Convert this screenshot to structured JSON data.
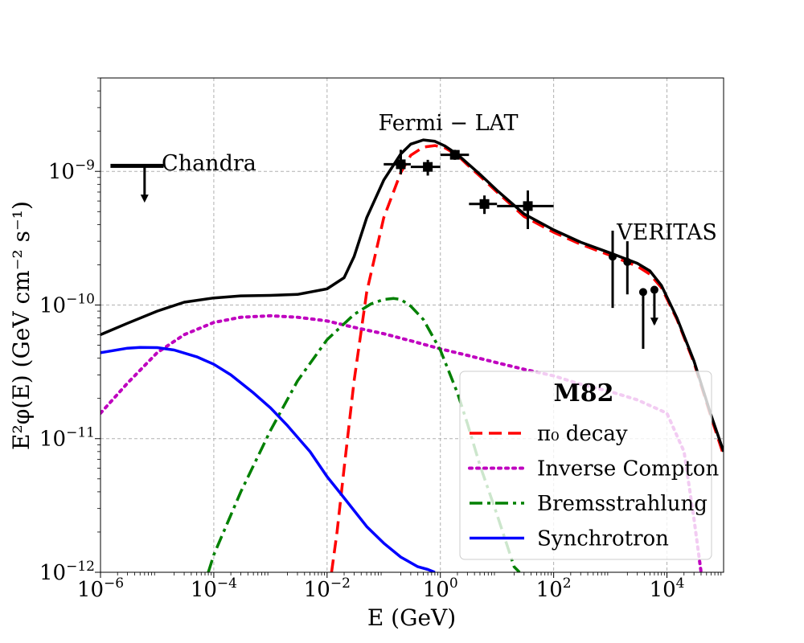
{
  "chart_data": {
    "type": "line",
    "title": "",
    "xlabel": "E (GeV)",
    "ylabel": "E²φ(E) (GeV cm⁻² s⁻¹)",
    "xscale": "log",
    "yscale": "log",
    "xlim": [
      1e-06,
      100000.0
    ],
    "ylim": [
      1e-12,
      5e-09
    ],
    "grid": true,
    "x_ticks": [
      {
        "value": 1e-06,
        "base": "10",
        "exp": "−6"
      },
      {
        "value": 0.0001,
        "base": "10",
        "exp": "−4"
      },
      {
        "value": 0.01,
        "base": "10",
        "exp": "−2"
      },
      {
        "value": 1,
        "base": "10",
        "exp": "0"
      },
      {
        "value": 100.0,
        "base": "10",
        "exp": "2"
      },
      {
        "value": 10000.0,
        "base": "10",
        "exp": "4"
      }
    ],
    "y_ticks": [
      {
        "value": 1e-12,
        "base": "10",
        "exp": "−12"
      },
      {
        "value": 1e-11,
        "base": "10",
        "exp": "−11"
      },
      {
        "value": 1e-10,
        "base": "10",
        "exp": "−10"
      },
      {
        "value": 1e-09,
        "base": "10",
        "exp": "−9"
      }
    ],
    "series": [
      {
        "name": "Total",
        "color": "#000000",
        "style": "solid",
        "x": [
          1e-06,
          3e-06,
          1e-05,
          3e-05,
          0.0001,
          0.0003,
          0.001,
          0.003,
          0.01,
          0.02,
          0.03,
          0.05,
          0.1,
          0.2,
          0.3,
          0.5,
          0.8,
          1.2,
          2,
          3,
          5,
          10,
          30,
          100,
          300,
          1000,
          3000,
          5000,
          8000,
          15000.0,
          30000.0,
          60000.0,
          100000.0
        ],
        "y": [
          6e-11,
          7.3e-11,
          9e-11,
          1.05e-10,
          1.13e-10,
          1.17e-10,
          1.18e-10,
          1.2e-10,
          1.32e-10,
          1.6e-10,
          2.3e-10,
          4.5e-10,
          8.6e-10,
          1.35e-09,
          1.6e-09,
          1.72e-09,
          1.68e-09,
          1.55e-09,
          1.34e-09,
          1.15e-09,
          9.5e-10,
          7.2e-10,
          4.8e-10,
          3.65e-10,
          2.95e-10,
          2.45e-10,
          2.05e-10,
          1.8e-10,
          1.4e-10,
          8e-11,
          3.8e-11,
          1.5e-11,
          8e-12
        ]
      },
      {
        "name": "π₀ decay",
        "color": "#ff0000",
        "style": "dashed",
        "x": [
          0.012,
          0.015,
          0.02,
          0.03,
          0.05,
          0.1,
          0.2,
          0.3,
          0.5,
          0.8,
          1.2,
          2,
          3,
          5,
          10,
          30,
          100,
          300,
          1000,
          3000,
          5000,
          8000,
          15000.0,
          30000.0,
          60000.0,
          100000.0
        ],
        "y": [
          1e-12,
          2e-12,
          6e-12,
          2.7e-11,
          1.25e-10,
          4.5e-10,
          9.8e-10,
          1.32e-09,
          1.52e-09,
          1.56e-09,
          1.5e-09,
          1.32e-09,
          1.12e-09,
          9.2e-10,
          7e-10,
          4.6e-10,
          3.5e-10,
          2.85e-10,
          2.35e-10,
          1.95e-10,
          1.7e-10,
          1.35e-10,
          7.8e-11,
          3.7e-11,
          1.45e-11,
          7.5e-12
        ]
      },
      {
        "name": "Inverse Compton",
        "color": "#bf00bf",
        "style": "dotted",
        "x": [
          1e-06,
          3e-06,
          1e-05,
          3e-05,
          0.0001,
          0.0003,
          0.001,
          0.003,
          0.01,
          0.03,
          0.1,
          0.3,
          1,
          3,
          10,
          30,
          100,
          300,
          1000,
          3000,
          10000.0,
          20000.0,
          30000.0,
          40000.0
        ],
        "y": [
          1.55e-11,
          2.6e-11,
          4.4e-11,
          6e-11,
          7.4e-11,
          8.1e-11,
          8.3e-11,
          8.1e-11,
          7.6e-11,
          6.8e-11,
          6.1e-11,
          5.4e-11,
          4.7e-11,
          4.2e-11,
          3.7e-11,
          3.3e-11,
          2.95e-11,
          2.55e-11,
          2.25e-11,
          1.95e-11,
          1.55e-11,
          8e-12,
          2.5e-12,
          1e-12
        ]
      },
      {
        "name": "Bremsstrahlung",
        "color": "#008000",
        "style": "dashdot",
        "x": [
          8e-05,
          0.0001,
          0.0003,
          0.001,
          0.003,
          0.01,
          0.03,
          0.06,
          0.1,
          0.15,
          0.2,
          0.3,
          0.5,
          1,
          2,
          3,
          5,
          10,
          15,
          20,
          25
        ],
        "y": [
          1e-12,
          1.35e-12,
          4e-12,
          1.15e-11,
          2.7e-11,
          5.5e-11,
          8.5e-11,
          1.02e-10,
          1.1e-10,
          1.12e-10,
          1.1e-10,
          9.8e-11,
          7.8e-11,
          4.6e-11,
          2.2e-11,
          1.3e-11,
          6.3e-12,
          2.7e-12,
          1.6e-12,
          1.1e-12,
          1e-12
        ]
      },
      {
        "name": "Synchrotron",
        "color": "#0000ff",
        "style": "solid",
        "x": [
          1e-06,
          3e-06,
          5e-06,
          1e-05,
          2e-05,
          5e-05,
          0.0001,
          0.0002,
          0.0005,
          0.001,
          0.002,
          0.005,
          0.01,
          0.02,
          0.05,
          0.1,
          0.2,
          0.4,
          0.6,
          0.8
        ],
        "y": [
          4.4e-11,
          4.75e-11,
          4.82e-11,
          4.8e-11,
          4.6e-11,
          4.1e-11,
          3.6e-11,
          3e-11,
          2.2e-11,
          1.7e-11,
          1.25e-11,
          8e-12,
          5.2e-12,
          3.6e-12,
          2.2e-12,
          1.65e-12,
          1.3e-12,
          1.1e-12,
          1.05e-12,
          1e-12
        ]
      }
    ],
    "data_points": [
      {
        "group": "Fermi-LAT",
        "marker": "square",
        "x": 0.2,
        "y": 1.13e-09,
        "x_lo": 0.1,
        "x_hi": 0.3,
        "y_lo": 9.5e-10,
        "y_hi": 1.45e-09
      },
      {
        "group": "Fermi-LAT",
        "marker": "square",
        "x": 0.6,
        "y": 1.08e-09,
        "x_lo": 0.3,
        "x_hi": 1.0,
        "y_lo": 9.3e-10,
        "y_hi": 1.22e-09
      },
      {
        "group": "Fermi-LAT",
        "marker": "square",
        "x": 1.8,
        "y": 1.33e-09,
        "x_lo": 1.0,
        "x_hi": 3.2,
        "y_lo": 1.22e-09,
        "y_hi": 1.45e-09
      },
      {
        "group": "Fermi-LAT",
        "marker": "square",
        "x": 6,
        "y": 5.7e-10,
        "x_lo": 3.2,
        "x_hi": 10,
        "y_lo": 4.8e-10,
        "y_hi": 6.6e-10
      },
      {
        "group": "Fermi-LAT",
        "marker": "square",
        "x": 35,
        "y": 5.5e-10,
        "x_lo": 10,
        "x_hi": 100,
        "y_lo": 3.7e-10,
        "y_hi": 7.2e-10
      },
      {
        "group": "VERITAS",
        "marker": "circle",
        "x": 1100,
        "y": 2.3e-10,
        "y_lo": 9.5e-11,
        "y_hi": 3.6e-10
      },
      {
        "group": "VERITAS",
        "marker": "circle",
        "x": 2000,
        "y": 2.1e-10,
        "y_lo": 1.2e-10,
        "y_hi": 3e-10
      },
      {
        "group": "VERITAS",
        "marker": "circle",
        "x": 3800,
        "y": 1.25e-10,
        "y_lo": 4.7e-11,
        "y_hi": 1.25e-10
      },
      {
        "group": "VERITAS",
        "marker": "circle",
        "x": 6000,
        "y": 1.3e-10,
        "y_lo": 7.2e-11,
        "y_hi": 1.3e-10,
        "upper_limit": true
      }
    ],
    "upper_limits": [
      {
        "group": "Chandra",
        "x": 6e-06,
        "x_lo": 1.5e-06,
        "x_hi": 1.3e-05,
        "y": 1.1e-09,
        "y_arrow_end": 6e-10
      }
    ],
    "annotations": [
      {
        "text": "Chandra",
        "x": 1.2e-05,
        "y": 1.15e-09
      },
      {
        "text": "Fermi − LAT",
        "x": 0.08,
        "y": 2.3e-09
      },
      {
        "text": "VERITAS",
        "x": 1300,
        "y": 3.5e-10
      }
    ],
    "legend": {
      "title": "M82",
      "location": "lower right",
      "entries": [
        {
          "label": "π₀ decay",
          "series": "π₀ decay"
        },
        {
          "label": "Inverse Compton",
          "series": "Inverse Compton"
        },
        {
          "label": "Bremsstrahlung",
          "series": "Bremsstrahlung"
        },
        {
          "label": "Synchrotron",
          "series": "Synchrotron"
        }
      ]
    }
  }
}
